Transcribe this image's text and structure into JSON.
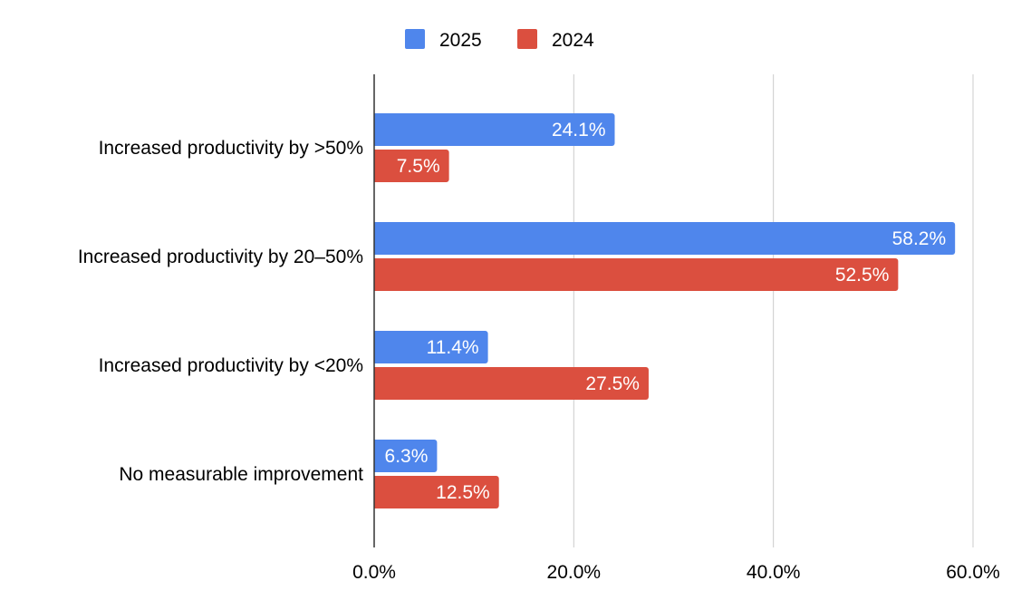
{
  "chart_data": {
    "type": "bar",
    "orientation": "horizontal",
    "categories": [
      "Increased productivity by >50%",
      "Increased productivity by 20–50%",
      "Increased productivity by <20%",
      "No measurable improvement"
    ],
    "series": [
      {
        "name": "2025",
        "color": "#4f86ec",
        "values": [
          24.1,
          58.2,
          11.4,
          6.3
        ]
      },
      {
        "name": "2024",
        "color": "#db4f3f",
        "values": [
          7.5,
          52.5,
          27.5,
          12.5
        ]
      }
    ],
    "data_labels": [
      [
        "24.1%",
        "58.2%",
        "11.4%",
        "6.3%"
      ],
      [
        "7.5%",
        "52.5%",
        "27.5%",
        "12.5%"
      ]
    ],
    "xlim": [
      0,
      60
    ],
    "xticks": [
      0,
      20,
      40,
      60
    ],
    "xtick_labels": [
      "0.0%",
      "20.0%",
      "40.0%",
      "60.0%"
    ],
    "title": "",
    "xlabel": "",
    "ylabel": "",
    "grid": "vertical",
    "legend": "top-center"
  }
}
